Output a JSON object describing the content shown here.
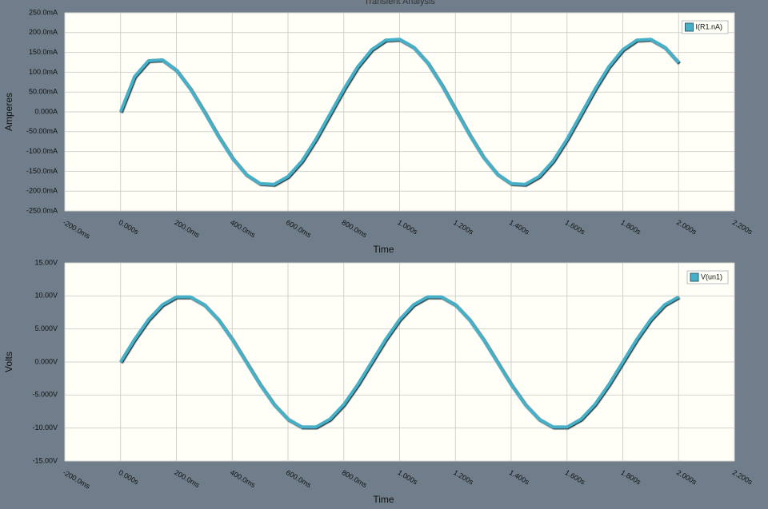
{
  "chart_data": [
    {
      "type": "line",
      "title": "Transient Analysis",
      "x_label": "Time",
      "y_label": "Amperes",
      "x": [
        0,
        0.05,
        0.1,
        0.15,
        0.2,
        0.25,
        0.3,
        0.35,
        0.4,
        0.45,
        0.5,
        0.55,
        0.6,
        0.65,
        0.7,
        0.75,
        0.8,
        0.85,
        0.9,
        0.95,
        1.0,
        1.05,
        1.1,
        1.15,
        1.2,
        1.25,
        1.3,
        1.35,
        1.4,
        1.45,
        1.5,
        1.55,
        1.6,
        1.65,
        1.7,
        1.75,
        1.8,
        1.85,
        1.9,
        1.95,
        2.0
      ],
      "series": [
        {
          "name": "I(R1.nA)",
          "color": "#45b0c8",
          "values": [
            0,
            89,
            129,
            131,
            105,
            58,
            0,
            -61,
            -116,
            -158,
            -181,
            -183,
            -163,
            -124,
            -69,
            -6,
            57,
            114,
            157,
            181,
            183,
            163,
            124,
            69,
            6,
            -57,
            -114,
            -157,
            -181,
            -183,
            -163,
            -124,
            -69,
            -6,
            57,
            114,
            157,
            181,
            183,
            163,
            124
          ]
        }
      ],
      "xlim": [
        -0.2,
        2.2
      ],
      "xticks": [
        {
          "value": -0.2,
          "label": "-200.0ms"
        },
        {
          "value": 0,
          "label": "0.000s"
        },
        {
          "value": 0.2,
          "label": "200.0ms"
        },
        {
          "value": 0.4,
          "label": "400.0ms"
        },
        {
          "value": 0.6,
          "label": "600.0ms"
        },
        {
          "value": 0.8,
          "label": "800.0ms"
        },
        {
          "value": 1.0,
          "label": "1.000s"
        },
        {
          "value": 1.2,
          "label": "1.200s"
        },
        {
          "value": 1.4,
          "label": "1.400s"
        },
        {
          "value": 1.6,
          "label": "1.600s"
        },
        {
          "value": 1.8,
          "label": "1.800s"
        },
        {
          "value": 2.0,
          "label": "2.000s"
        },
        {
          "value": 2.2,
          "label": "2.200s"
        }
      ],
      "ylim": [
        -250,
        250
      ],
      "yticks": [
        {
          "value": 250,
          "label": "250.0mA"
        },
        {
          "value": 200,
          "label": "200.0mA"
        },
        {
          "value": 150,
          "label": "150.0mA"
        },
        {
          "value": 100,
          "label": "100.0mA"
        },
        {
          "value": 50,
          "label": "50.00mA"
        },
        {
          "value": 0,
          "label": "0.000A"
        },
        {
          "value": -50,
          "label": "-50.00mA"
        },
        {
          "value": -100,
          "label": "-100.0mA"
        },
        {
          "value": -150,
          "label": "-150.0mA"
        },
        {
          "value": -200,
          "label": "-200.0mA"
        },
        {
          "value": -250,
          "label": "-250.0mA"
        }
      ],
      "grid": true,
      "legend": "top-right"
    },
    {
      "type": "line",
      "x_label": "Time",
      "y_label": "Volts",
      "x": [
        0,
        0.05,
        0.1,
        0.15,
        0.2,
        0.25,
        0.3,
        0.35,
        0.4,
        0.45,
        0.5,
        0.55,
        0.6,
        0.65,
        0.7,
        0.75,
        0.8,
        0.85,
        0.9,
        0.95,
        1.0,
        1.05,
        1.1,
        1.15,
        1.2,
        1.25,
        1.3,
        1.35,
        1.4,
        1.45,
        1.5,
        1.55,
        1.6,
        1.65,
        1.7,
        1.75,
        1.8,
        1.85,
        1.9,
        1.95,
        2.0
      ],
      "series": [
        {
          "name": "V(un1)",
          "color": "#45b0c8",
          "values": [
            0,
            3.42,
            6.43,
            8.66,
            9.85,
            9.85,
            8.66,
            6.43,
            3.42,
            0,
            -3.42,
            -6.43,
            -8.66,
            -9.85,
            -9.85,
            -8.66,
            -6.43,
            -3.42,
            0,
            3.42,
            6.43,
            8.66,
            9.85,
            9.85,
            8.66,
            6.43,
            3.42,
            0,
            -3.42,
            -6.43,
            -8.66,
            -9.85,
            -9.85,
            -8.66,
            -6.43,
            -3.42,
            0,
            3.42,
            6.43,
            8.66,
            9.85
          ]
        }
      ],
      "xlim": [
        -0.2,
        2.2
      ],
      "xticks": [
        {
          "value": -0.2,
          "label": "-200.0ms"
        },
        {
          "value": 0,
          "label": "0.000s"
        },
        {
          "value": 0.2,
          "label": "200.0ms"
        },
        {
          "value": 0.4,
          "label": "400.0ms"
        },
        {
          "value": 0.6,
          "label": "600.0ms"
        },
        {
          "value": 0.8,
          "label": "800.0ms"
        },
        {
          "value": 1.0,
          "label": "1.000s"
        },
        {
          "value": 1.2,
          "label": "1.200s"
        },
        {
          "value": 1.4,
          "label": "1.400s"
        },
        {
          "value": 1.6,
          "label": "1.600s"
        },
        {
          "value": 1.8,
          "label": "1.800s"
        },
        {
          "value": 2.0,
          "label": "2.000s"
        },
        {
          "value": 2.2,
          "label": "2.200s"
        }
      ],
      "ylim": [
        -15,
        15
      ],
      "yticks": [
        {
          "value": 15,
          "label": "15.00V"
        },
        {
          "value": 10,
          "label": "10.00V"
        },
        {
          "value": 5,
          "label": "5.000V"
        },
        {
          "value": 0,
          "label": "0.000V"
        },
        {
          "value": -5,
          "label": "-5.000V"
        },
        {
          "value": -10,
          "label": "-10.00V"
        },
        {
          "value": -15,
          "label": "-15.00V"
        }
      ],
      "grid": true,
      "legend": "top-right"
    }
  ]
}
